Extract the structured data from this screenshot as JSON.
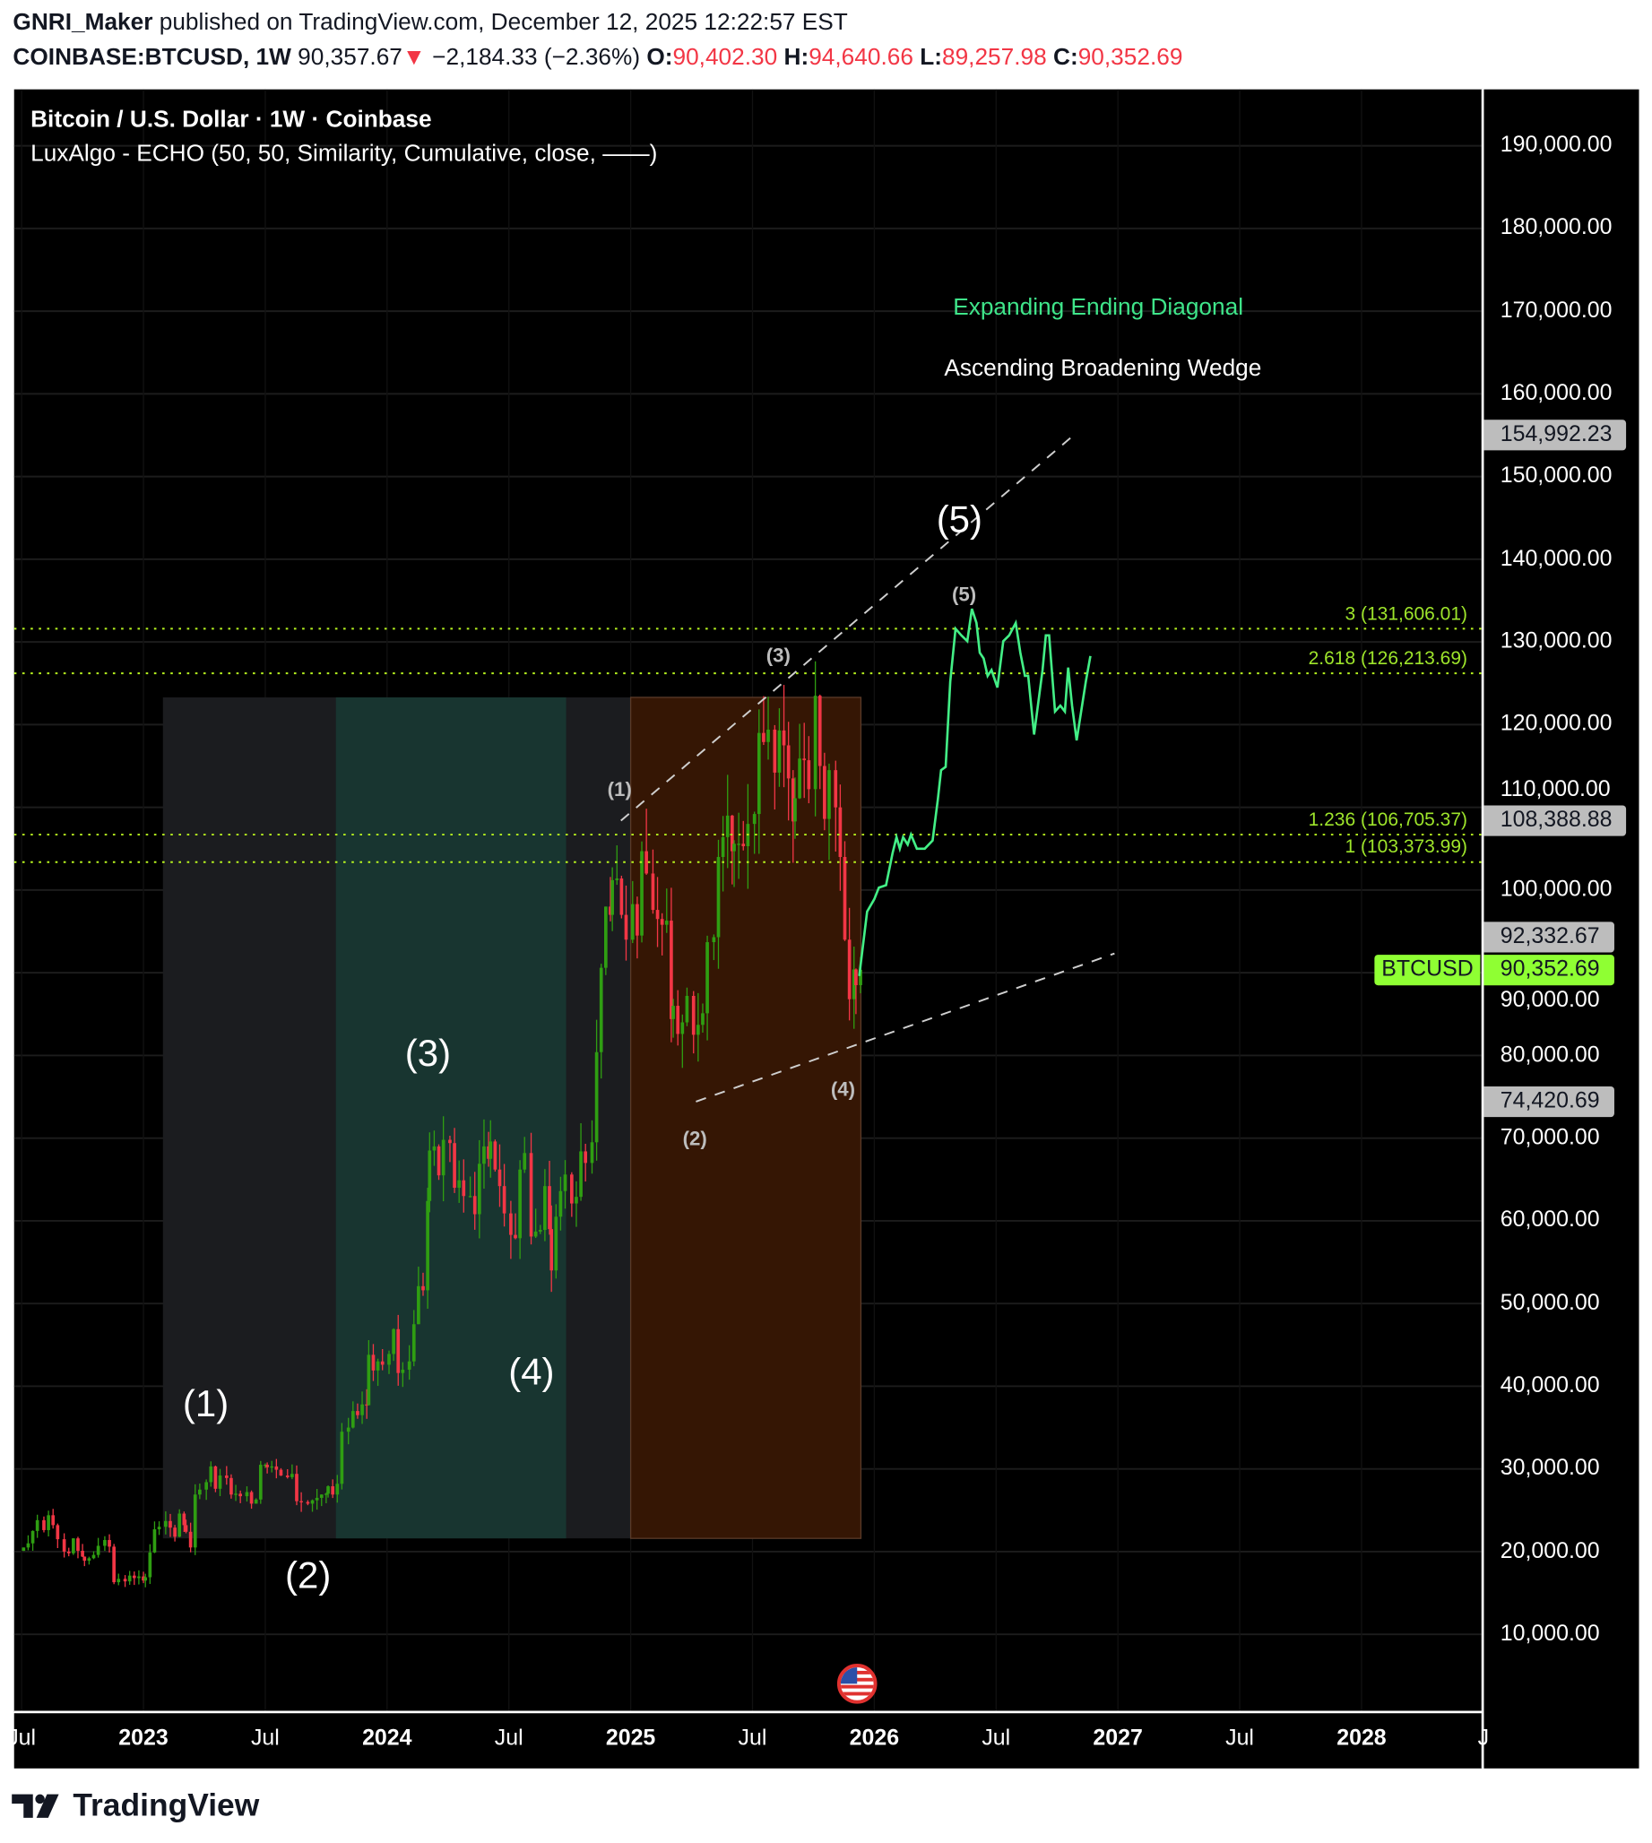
{
  "header": {
    "author": "GNRI_Maker",
    "published": "published on TradingView.com, December 12, 2025 12:22:57 EST",
    "symbol": "COINBASE:BTCUSD, 1W",
    "last": "90,357.67",
    "change": "−2,184.33 (−2.36%)",
    "o_label": "O:",
    "o": "90,402.30",
    "h_label": "H:",
    "h": "94,640.66",
    "l_label": "L:",
    "l": "89,257.98",
    "c_label": "C:",
    "c": "90,352.69"
  },
  "pane": {
    "title": "Bitcoin / U.S. Dollar · 1W · Coinbase",
    "indicator": "LuxAlgo - ECHO (50, 50, Similarity, Cumulative, close, ——)"
  },
  "annotations": {
    "pattern_1": "Expanding Ending Diagonal",
    "pattern_2": "Ascending Broadening Wedge",
    "pattern_1_color": "#3fe58a",
    "pattern_2_color": "#ffffff",
    "primary_waves": [
      "(1)",
      "(2)",
      "(3)",
      "(4)",
      "(5)"
    ],
    "minor_waves": [
      "(1)",
      "(2)",
      "(3)",
      "(4)",
      "(5)"
    ]
  },
  "logo": "TradingView",
  "colors": {
    "up": "#2f9e12",
    "down": "#f23645",
    "echo": "#43ef86",
    "fib": "#b8f51f",
    "current_price": "#8fff33"
  },
  "chart_data": {
    "type": "candlestick",
    "interval": "1W",
    "ylim": [
      0,
      200000
    ],
    "grid": true,
    "y_ticks": [
      "10,000.00",
      "20,000.00",
      "30,000.00",
      "40,000.00",
      "50,000.00",
      "60,000.00",
      "70,000.00",
      "80,000.00",
      "90,000.00",
      "100,000.00",
      "110,000.00",
      "120,000.00",
      "130,000.00",
      "140,000.00",
      "150,000.00",
      "160,000.00",
      "170,000.00",
      "180,000.00",
      "190,000.00"
    ],
    "x_ticks": [
      {
        "label": "Jul",
        "date": "2022-07-01",
        "year": false
      },
      {
        "label": "2023",
        "date": "2023-01-01",
        "year": true
      },
      {
        "label": "Jul",
        "date": "2023-07-01",
        "year": false
      },
      {
        "label": "2024",
        "date": "2024-01-01",
        "year": true
      },
      {
        "label": "Jul",
        "date": "2024-07-01",
        "year": false
      },
      {
        "label": "2025",
        "date": "2025-01-01",
        "year": true
      },
      {
        "label": "Jul",
        "date": "2025-07-01",
        "year": false
      },
      {
        "label": "2026",
        "date": "2026-01-01",
        "year": true
      },
      {
        "label": "Jul",
        "date": "2026-07-01",
        "year": false
      },
      {
        "label": "2027",
        "date": "2027-01-01",
        "year": true
      },
      {
        "label": "Jul",
        "date": "2027-07-01",
        "year": false
      },
      {
        "label": "2028",
        "date": "2028-01-01",
        "year": true
      },
      {
        "label": "J",
        "date": "2028-07-01",
        "year": false
      }
    ],
    "weekly_closes": {
      "2022-07": [
        20500,
        21000,
        22500,
        23800
      ],
      "2022-08": [
        22600,
        24400,
        23200,
        21500
      ],
      "2022-09": [
        20000,
        19800,
        21600,
        20100,
        19400
      ],
      "2022-10": [
        18900,
        19200,
        19600,
        20700
      ],
      "2022-11": [
        21400,
        20600,
        16300,
        16700
      ],
      "2022-12": [
        16400,
        17100,
        16800,
        17000,
        16500
      ],
      "2023-01": [
        16900,
        19900,
        22700,
        23000
      ],
      "2023-02": [
        23700,
        22900,
        21800,
        24600,
        23200
      ],
      "2023-03": [
        22400,
        20500,
        26900,
        27500
      ],
      "2023-04": [
        28400,
        30300,
        27600,
        29200
      ],
      "2023-05": [
        28900,
        26900,
        27000,
        26700
      ],
      "2023-06": [
        27200,
        25800,
        26300,
        30500,
        30500
      ],
      "2023-07": [
        30200,
        30300,
        29900,
        29200
      ],
      "2023-08": [
        29000,
        29400,
        26100,
        26000
      ],
      "2023-09": [
        25800,
        26200,
        26500,
        26900,
        27000
      ],
      "2023-10": [
        27900,
        26900,
        28200,
        34500
      ],
      "2023-11": [
        35000,
        37000,
        36500,
        37800,
        37700
      ],
      "2023-12": [
        43800,
        41900,
        43000,
        42600
      ],
      "2024-01": [
        43900,
        46900,
        41600,
        42000
      ],
      "2024-02": [
        43000,
        47500,
        52100,
        51600,
        62400
      ],
      "2024-03": [
        68500,
        69000,
        65500,
        69800
      ],
      "2024-04": [
        69400,
        64000,
        64900,
        63000
      ],
      "2024-05": [
        63000,
        60800,
        66900,
        69000,
        67500
      ],
      "2024-06": [
        69600,
        66200,
        64200,
        60900
      ],
      "2024-07": [
        58300,
        57900,
        66200,
        68200
      ],
      "2024-08": [
        58100,
        58700,
        58900,
        64200,
        59000
      ],
      "2024-09": [
        54000,
        60500,
        63600,
        65600
      ],
      "2024-10": [
        62100,
        62900,
        68400,
        67000
      ],
      "2024-11": [
        69500,
        80400,
        90600,
        98000,
        97000
      ],
      "2024-12": [
        101200,
        101400,
        97000,
        94000
      ],
      "2025-01": [
        98300,
        94500,
        104700,
        102000
      ],
      "2025-02": [
        97600,
        96500,
        95800,
        96300,
        84400
      ],
      "2025-03": [
        86000,
        82600,
        84000,
        87200
      ],
      "2025-04": [
        82500,
        83700,
        85100,
        93700
      ],
      "2025-05": [
        94300,
        104000,
        106400,
        109000,
        104700
      ],
      "2025-06": [
        105600,
        105600,
        105300,
        108000
      ],
      "2025-07": [
        109200,
        119000,
        117900,
        119400
      ],
      "2025-08": [
        114200,
        119300,
        117500,
        113500,
        108300
      ],
      "2025-09": [
        111100,
        115900,
        115700,
        112200
      ],
      "2025-10": [
        123500,
        115000,
        108600,
        114500
      ],
      "2025-11": [
        110000,
        104000,
        94000,
        86800,
        90400
      ],
      "2025-12": [
        88500,
        90352.69
      ]
    },
    "echo_projection": [
      [
        "2025-12-09",
        89600
      ],
      [
        "2025-12-21",
        97400
      ],
      [
        "2026-01-01",
        98900
      ],
      [
        "2026-01-08",
        100300
      ],
      [
        "2026-01-19",
        100600
      ],
      [
        "2026-01-29",
        104500
      ],
      [
        "2026-02-04",
        106400
      ],
      [
        "2026-02-09",
        105000
      ],
      [
        "2026-02-14",
        106400
      ],
      [
        "2026-02-21",
        105500
      ],
      [
        "2026-02-26",
        106700
      ],
      [
        "2026-03-04",
        105000
      ],
      [
        "2026-03-16",
        105000
      ],
      [
        "2026-03-28",
        106000
      ],
      [
        "2026-04-05",
        110900
      ],
      [
        "2026-04-10",
        114500
      ],
      [
        "2026-04-17",
        114900
      ],
      [
        "2026-04-24",
        125200
      ],
      [
        "2026-05-01",
        131600
      ],
      [
        "2026-05-10",
        130800
      ],
      [
        "2026-05-19",
        130100
      ],
      [
        "2026-05-26",
        134000
      ],
      [
        "2026-06-02",
        132300
      ],
      [
        "2026-06-07",
        128700
      ],
      [
        "2026-06-13",
        128000
      ],
      [
        "2026-06-19",
        125900
      ],
      [
        "2026-06-25",
        126600
      ],
      [
        "2026-07-03",
        124500
      ],
      [
        "2026-07-12",
        130100
      ],
      [
        "2026-07-21",
        130800
      ],
      [
        "2026-07-31",
        132300
      ],
      [
        "2026-08-07",
        128700
      ],
      [
        "2026-08-14",
        125900
      ],
      [
        "2026-08-19",
        125900
      ],
      [
        "2026-08-28",
        118800
      ],
      [
        "2026-09-10",
        126600
      ],
      [
        "2026-09-15",
        130800
      ],
      [
        "2026-09-20",
        130800
      ],
      [
        "2026-09-29",
        121600
      ],
      [
        "2026-10-06",
        122300
      ],
      [
        "2026-10-13",
        121600
      ],
      [
        "2026-10-18",
        126900
      ],
      [
        "2026-10-24",
        122300
      ],
      [
        "2026-10-31",
        118100
      ],
      [
        "2026-11-14",
        125200
      ],
      [
        "2026-11-21",
        128300
      ]
    ],
    "fib_levels": [
      {
        "label": "3 (131,606.01)",
        "value": 131606.01
      },
      {
        "label": "2.618 (126,213.69)",
        "value": 126213.69
      },
      {
        "label": "1.236 (106,705.37)",
        "value": 106705.37
      },
      {
        "label": "1 (103,373.99)",
        "value": 103373.99
      }
    ],
    "price_tags": [
      {
        "label": "154,992.23",
        "value": 154992.23
      },
      {
        "label": "108,388.88",
        "value": 108388.88
      },
      {
        "label": "92,332.67",
        "value": 92332.67
      },
      {
        "label": "74,420.69",
        "value": 74420.69
      }
    ],
    "current_price": {
      "symbol": "BTCUSD",
      "label": "90,352.69",
      "value": 90352.69
    }
  }
}
